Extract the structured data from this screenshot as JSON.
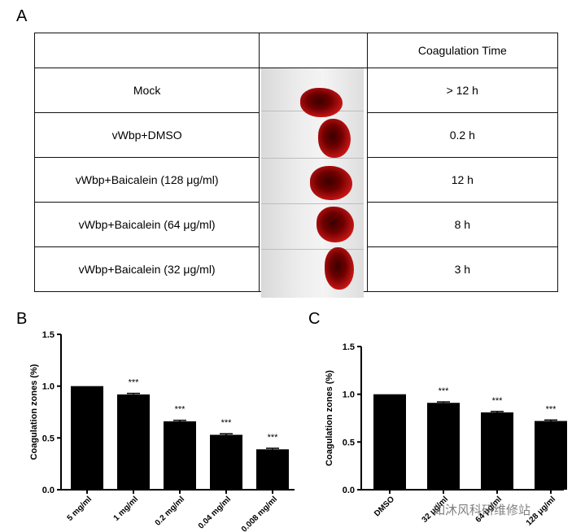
{
  "panels": {
    "a": {
      "letter": "A",
      "header": {
        "col1": "",
        "col2": "",
        "col3": "Coagulation Time"
      },
      "rows": [
        {
          "condition": "Mock",
          "time": "> 12 h"
        },
        {
          "condition": "vWbp+DMSO",
          "time": "0.2 h"
        },
        {
          "condition": "vWbp+Baicalein (128 μg/ml)",
          "time": "12 h"
        },
        {
          "condition": "vWbp+Baicalein (64 μg/ml)",
          "time": "8 h"
        },
        {
          "condition": "vWbp+Baicalein (32 μg/ml)",
          "time": "3 h"
        }
      ],
      "blood_color": "#c31414"
    },
    "b": {
      "letter": "B"
    },
    "c": {
      "letter": "C"
    }
  },
  "chart_data": [
    {
      "type": "bar",
      "panel": "B",
      "categories": [
        "5 mg/ml",
        "1 mg/ml",
        "0.2 mg/ml",
        "0.04 mg/ml",
        "0.008 mg/ml"
      ],
      "values": [
        1.0,
        0.92,
        0.66,
        0.53,
        0.39
      ],
      "error": [
        0.0,
        0.01,
        0.01,
        0.01,
        0.01
      ],
      "annotations": [
        "",
        "***",
        "***",
        "***",
        "***"
      ],
      "ylabel": "Coagulation zones (%)",
      "xlabel": "",
      "ylim": [
        0,
        1.5
      ],
      "yticks": [
        "0.0",
        "0.5",
        "1.0",
        "1.5"
      ],
      "bar_color": "#000000"
    },
    {
      "type": "bar",
      "panel": "C",
      "categories": [
        "DMSO",
        "32 μg/ml",
        "64 μg/ml",
        "128 μg/ml"
      ],
      "values": [
        1.0,
        0.91,
        0.81,
        0.72
      ],
      "error": [
        0.0,
        0.01,
        0.01,
        0.01
      ],
      "annotations": [
        "",
        "***",
        "***",
        "***"
      ],
      "ylabel": "Coagulation zones (%)",
      "xlabel": "",
      "ylim": [
        0,
        1.5
      ],
      "yticks": [
        "0.0",
        "0.5",
        "1.0",
        "1.5"
      ],
      "bar_color": "#000000"
    }
  ],
  "watermark": {
    "text": "如沐风科研维修站"
  }
}
